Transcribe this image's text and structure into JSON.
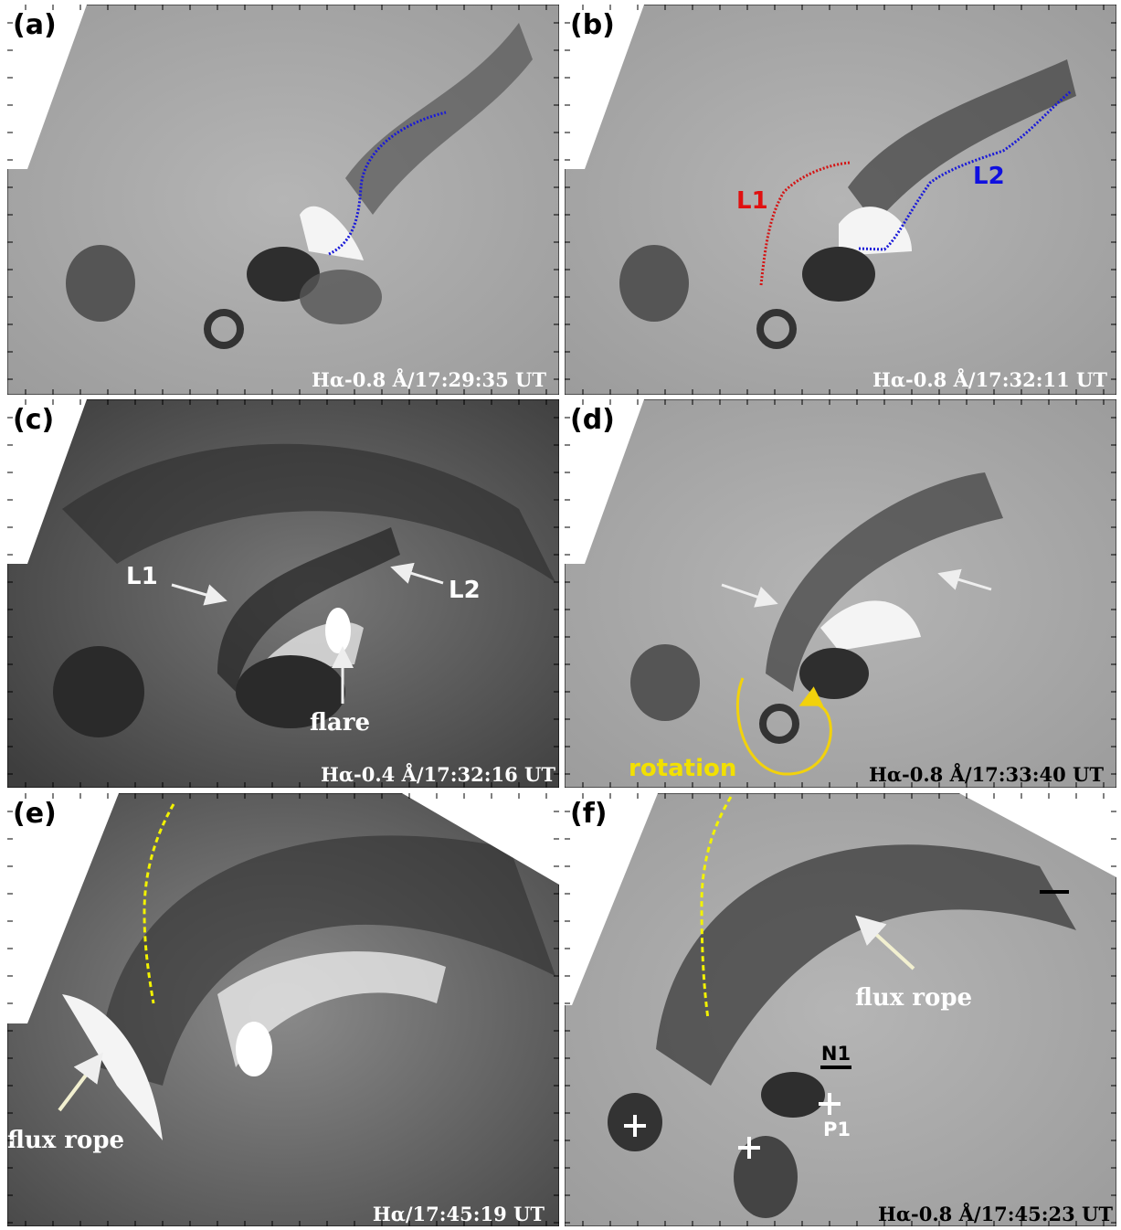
{
  "panels": [
    {
      "label": "(a)",
      "caption": "Hα-0.8 Å/17:29:35 UT",
      "annotations": []
    },
    {
      "label": "(b)",
      "caption": "Hα-0.8 Å/17:32:11 UT",
      "annotations": [
        {
          "text": "L1"
        },
        {
          "text": "L2"
        }
      ]
    },
    {
      "label": "(c)",
      "caption": "Hα-0.4 Å/17:32:16 UT",
      "annotations": [
        {
          "text": "L1"
        },
        {
          "text": "L2"
        },
        {
          "text": "flare"
        }
      ]
    },
    {
      "label": "(d)",
      "caption": "Hα-0.8 Å/17:33:40 UT",
      "annotations": [
        {
          "text": "rotation"
        }
      ]
    },
    {
      "label": "(e)",
      "caption": "Hα/17:45:19 UT",
      "annotations": [
        {
          "text": "flux rope"
        }
      ]
    },
    {
      "label": "(f)",
      "caption": "Hα-0.8 Å/17:45:23 UT",
      "annotations": [
        {
          "text": "flux rope"
        },
        {
          "text": "N1"
        },
        {
          "text": "P1"
        }
      ]
    }
  ]
}
